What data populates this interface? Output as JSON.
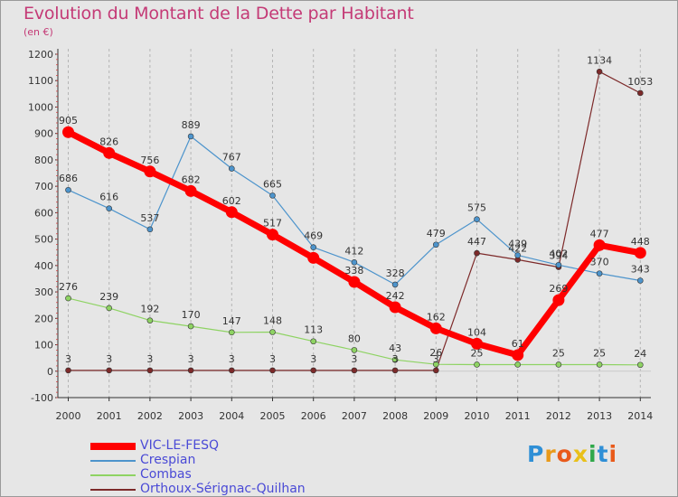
{
  "chart_data": {
    "type": "line",
    "title": "Evolution du Montant de la Dette par Habitant",
    "subtitle": "(en €)",
    "x": [
      "2000",
      "2001",
      "2002",
      "2003",
      "2004",
      "2005",
      "2006",
      "2007",
      "2008",
      "2009",
      "2010",
      "2011",
      "2012",
      "2013",
      "2014"
    ],
    "ylim": [
      -100,
      1200
    ],
    "yticks": [
      "-100",
      "0",
      "100",
      "200",
      "300",
      "400",
      "500",
      "600",
      "700",
      "800",
      "900",
      "1000",
      "1100",
      "1200"
    ],
    "grid": "dashed-vertical",
    "legend_position": "bottom-left",
    "series": [
      {
        "name": "VIC-LE-FESQ",
        "color": "#ff0000",
        "values": [
          905,
          826,
          756,
          682,
          602,
          517,
          429,
          338,
          242,
          162,
          104,
          61,
          269,
          477,
          448
        ],
        "labels": [
          "905",
          "826",
          "756",
          "682",
          "602",
          "517",
          "",
          "338",
          "242",
          "162",
          "104",
          "61",
          "269",
          "477",
          "448"
        ]
      },
      {
        "name": "Crespian",
        "color": "#4d94cc",
        "values": [
          686,
          616,
          537,
          889,
          767,
          665,
          469,
          412,
          328,
          479,
          575,
          439,
          402,
          370,
          343
        ],
        "labels": [
          "686",
          "616",
          "537",
          "889",
          "767",
          "665",
          "469",
          "412",
          "328",
          "479",
          "575",
          "439",
          "402",
          "370",
          "343"
        ]
      },
      {
        "name": "Combas",
        "color": "#8ed363",
        "values": [
          276,
          239,
          192,
          170,
          147,
          148,
          113,
          80,
          43,
          26,
          25,
          25,
          25,
          25,
          24
        ],
        "labels": [
          "276",
          "239",
          "192",
          "170",
          "147",
          "148",
          "113",
          "80",
          "43",
          "26",
          "25",
          "",
          "25",
          "25",
          "24"
        ]
      },
      {
        "name": "Orthoux-Sérignac-Quilhan",
        "color": "#7d2a2a",
        "values": [
          3,
          3,
          3,
          3,
          3,
          3,
          3,
          3,
          3,
          3,
          447,
          422,
          394,
          1134,
          1053
        ],
        "labels": [
          "3",
          "3",
          "3",
          "3",
          "3",
          "3",
          "3",
          "3",
          "3",
          "3",
          "447",
          "422",
          "394",
          "1134",
          "1053"
        ]
      }
    ]
  },
  "logo": {
    "text": "Proxiti",
    "letters": [
      {
        "ch": "P",
        "color": "#2f8fd6"
      },
      {
        "ch": "r",
        "color": "#e99a1a"
      },
      {
        "ch": "o",
        "color": "#e95a1a"
      },
      {
        "ch": "x",
        "color": "#e9c01a"
      },
      {
        "ch": "i",
        "color": "#2fa84a"
      },
      {
        "ch": "t",
        "color": "#2f8fd6"
      },
      {
        "ch": "i",
        "color": "#e95a1a"
      }
    ]
  }
}
